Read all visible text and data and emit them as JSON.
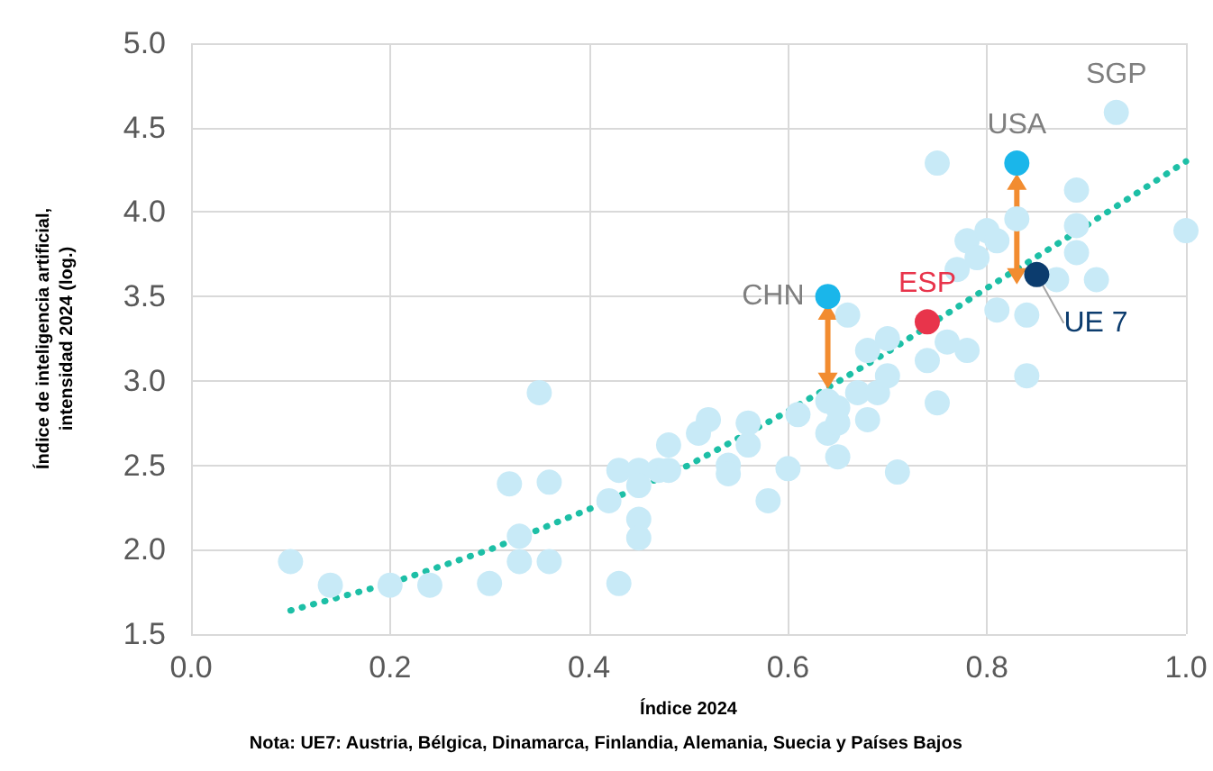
{
  "chart_data": {
    "type": "scatter",
    "xlabel": "Índice 2024",
    "ylabel": "Índice de inteligencia artificial,\nintensidad 2024 (log.)",
    "annotations": [
      "Nota: UE7: Austria, Bélgica, Dinamarca, Finlandia, Alemania, Suecia y Países Bajos"
    ],
    "xlim": [
      0,
      1
    ],
    "xticks": [
      {
        "value": 0,
        "label": "0.0"
      },
      0.2,
      0.4,
      0.6,
      0.8,
      {
        "value": 1,
        "label": "1.0"
      }
    ],
    "ylim": [
      1.5,
      5
    ],
    "yticks": [
      1.5,
      {
        "value": 2,
        "label": "2.0"
      },
      2.5,
      {
        "value": 3,
        "label": "3.0"
      },
      3.5,
      {
        "value": 4,
        "label": "4.0"
      },
      4.5,
      {
        "value": 5,
        "label": "5.0"
      }
    ],
    "grid": true,
    "legend": false,
    "marker": "circle",
    "series": [
      {
        "color": "#c8eaf7",
        "x": [
          0.1,
          0.14,
          0.2,
          0.24,
          0.3,
          0.32,
          0.33,
          0.33,
          0.35,
          0.36,
          0.36,
          0.42,
          0.43,
          0.43,
          0.45,
          0.45,
          0.45,
          0.45,
          0.47,
          0.48,
          0.48,
          0.51,
          0.52,
          0.54,
          0.54,
          0.56,
          0.56,
          0.58,
          0.6,
          0.61,
          0.64,
          0.64,
          0.65,
          0.65,
          0.65,
          0.66,
          0.67,
          0.68,
          0.68,
          0.69,
          0.7,
          0.7,
          0.71,
          0.74,
          0.75,
          0.75,
          0.76,
          0.77,
          0.78,
          0.78,
          0.79,
          0.8,
          0.81,
          0.81,
          0.83,
          0.84,
          0.84,
          0.87,
          0.89,
          0.89,
          0.89,
          0.91,
          1.0
        ],
        "values": [
          1.93,
          1.79,
          1.79,
          1.79,
          1.8,
          2.39,
          1.93,
          2.08,
          2.93,
          2.4,
          1.93,
          2.29,
          1.8,
          2.47,
          2.47,
          2.38,
          2.18,
          2.07,
          2.47,
          2.62,
          2.47,
          2.69,
          2.77,
          2.5,
          2.45,
          2.75,
          2.62,
          2.29,
          2.48,
          2.8,
          2.69,
          2.88,
          2.75,
          2.84,
          2.55,
          3.39,
          2.93,
          2.77,
          3.18,
          2.93,
          3.25,
          3.03,
          2.46,
          3.12,
          2.87,
          4.29,
          3.23,
          3.66,
          3.18,
          3.83,
          3.73,
          3.89,
          3.83,
          3.42,
          3.96,
          3.39,
          3.03,
          3.6,
          4.13,
          3.92,
          3.76,
          3.6,
          3.89
        ]
      },
      {
        "type": "line",
        "color": "#1dbfa6",
        "line_style": "dotted",
        "marker": "none",
        "x": [
          0.1,
          0.2,
          0.3,
          0.4,
          0.5,
          0.6,
          0.7,
          0.8,
          0.9,
          1.0
        ],
        "values": [
          1.64,
          1.8,
          2.0,
          2.24,
          2.5,
          2.82,
          3.17,
          3.55,
          3.92,
          4.3
        ]
      },
      {
        "type": "line",
        "color": "#f28c30",
        "line_style": "solid",
        "marker": "triangle",
        "x": [
          0.64,
          0.64
        ],
        "values": [
          3.41,
          3.0
        ]
      },
      {
        "type": "line",
        "color": "#f28c30",
        "line_style": "solid",
        "marker": "triangle",
        "x": [
          0.83,
          0.83
        ],
        "values": [
          4.18,
          3.62
        ]
      },
      {
        "name": "CHN",
        "color": "#1ab6ea",
        "x": [
          0.64
        ],
        "values": [
          3.5
        ]
      },
      {
        "name": "ESP",
        "color": "#e8344b",
        "x": [
          0.74
        ],
        "values": [
          3.35
        ]
      },
      {
        "name": "USA",
        "color": "#1ab6ea",
        "x": [
          0.83
        ],
        "values": [
          4.29
        ]
      },
      {
        "name": "UE 7",
        "color": "#0c3c6e",
        "x": [
          0.85
        ],
        "values": [
          3.63
        ]
      },
      {
        "name": "SGP",
        "color": "#c8eaf7",
        "x": [
          0.93
        ],
        "values": [
          4.59
        ]
      }
    ]
  }
}
